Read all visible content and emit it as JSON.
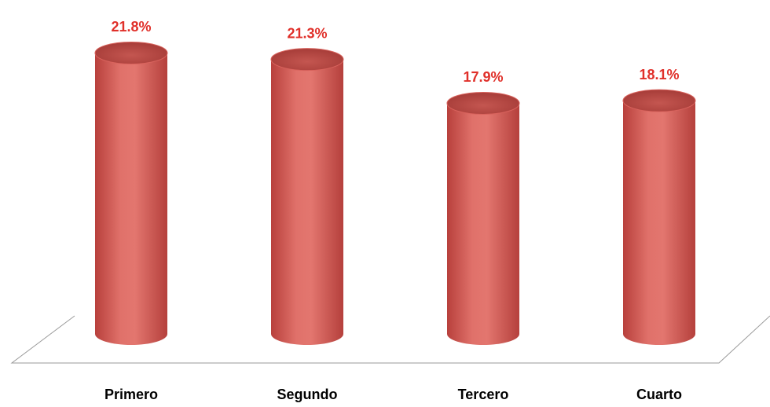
{
  "chart_data": {
    "type": "cylinder",
    "categories": [
      "Primero",
      "Segundo",
      "Tercero",
      "Cuarto"
    ],
    "values": [
      21.8,
      21.3,
      17.9,
      18.1
    ],
    "value_labels": [
      "21.8%",
      "21.3%",
      "17.9%",
      "18.1%"
    ],
    "color": "#d6605a",
    "label_color": "#e0302a"
  }
}
